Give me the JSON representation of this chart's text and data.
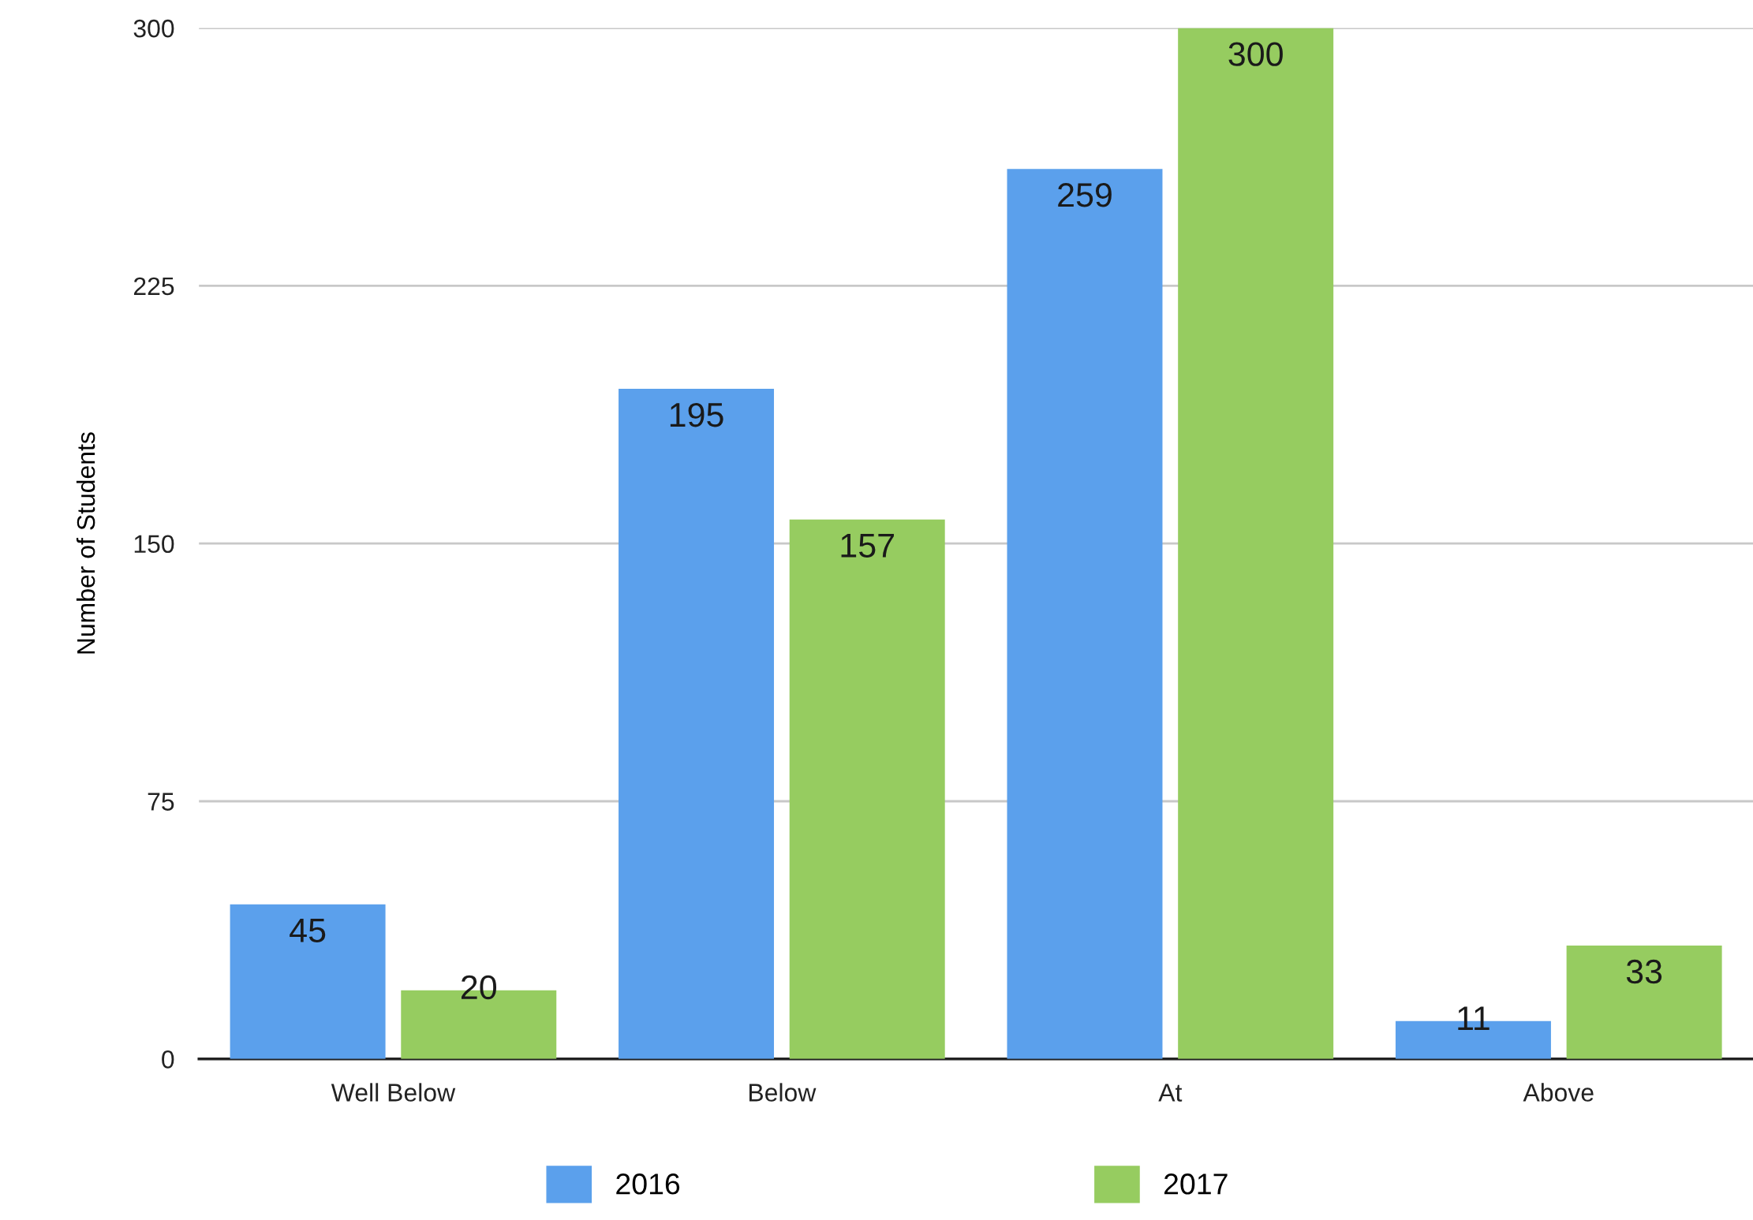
{
  "chart_data": {
    "type": "bar",
    "ylabel": "Number of Students",
    "categories": [
      "Well Below",
      "Below",
      "At",
      "Above"
    ],
    "series": [
      {
        "name": "2016",
        "color": "#5ba0ec",
        "values": [
          45,
          195,
          259,
          11
        ]
      },
      {
        "name": "2017",
        "color": "#96cc60",
        "values": [
          20,
          157,
          300,
          33
        ]
      }
    ],
    "ylim": [
      0,
      300
    ],
    "yticks": [
      0,
      75,
      150,
      225,
      300
    ],
    "grid": "y",
    "legend": "bottom",
    "data_labels": true
  }
}
